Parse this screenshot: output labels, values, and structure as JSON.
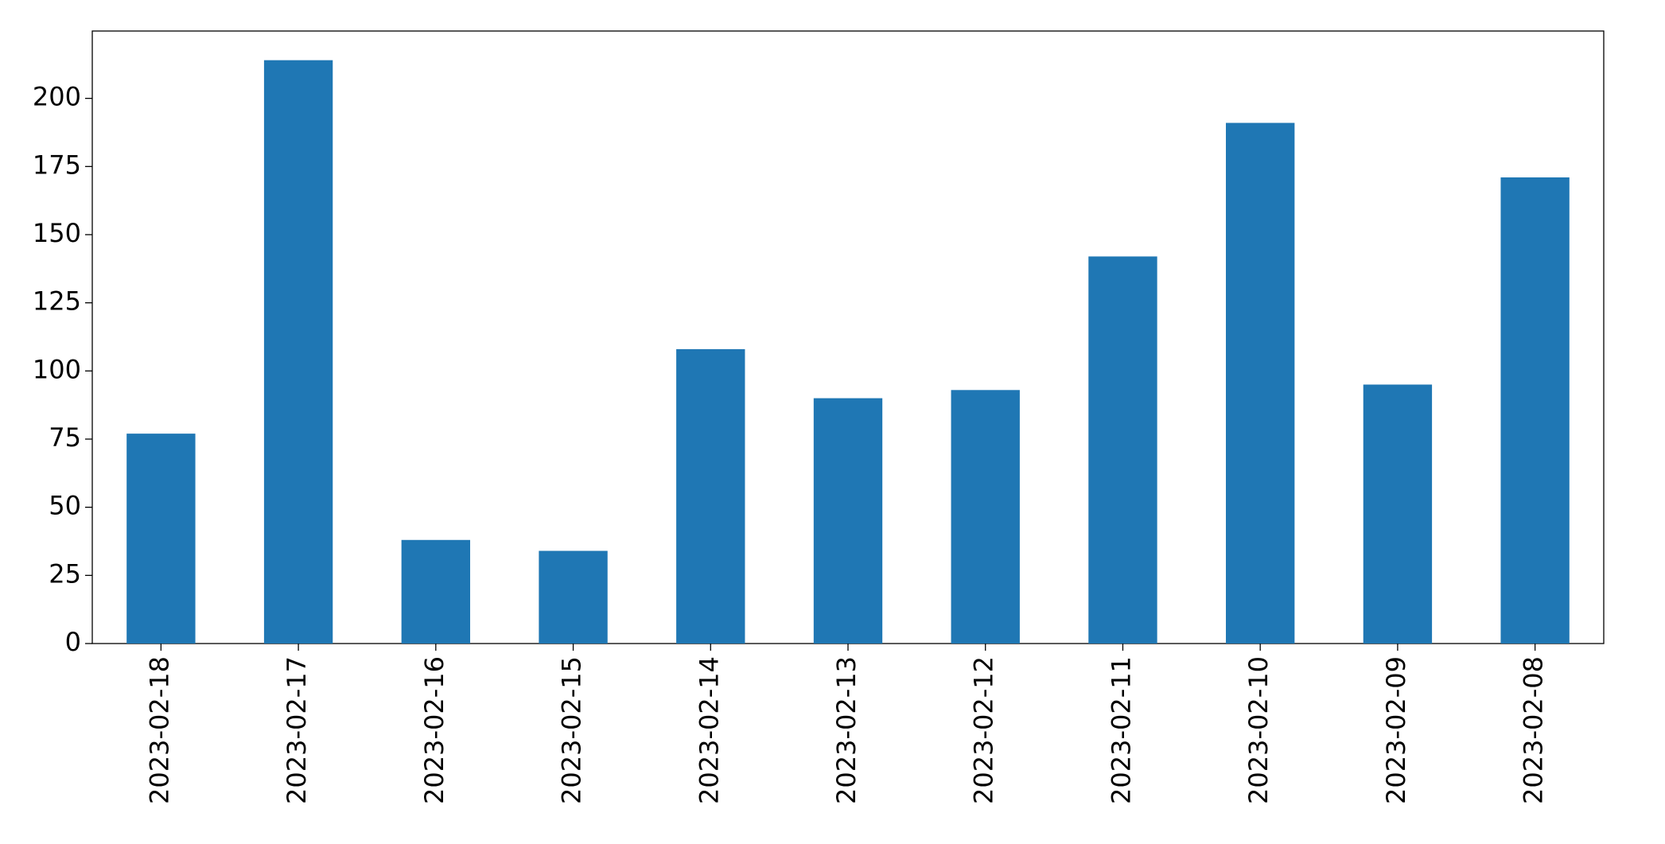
{
  "chart_data": {
    "type": "bar",
    "categories": [
      "2023-02-18",
      "2023-02-17",
      "2023-02-16",
      "2023-02-15",
      "2023-02-14",
      "2023-02-13",
      "2023-02-12",
      "2023-02-11",
      "2023-02-10",
      "2023-02-09",
      "2023-02-08"
    ],
    "values": [
      77,
      214,
      38,
      34,
      108,
      90,
      93,
      142,
      191,
      95,
      171
    ],
    "color": "#1f77b4",
    "ylim": [
      0,
      224.7
    ],
    "yticks": [
      0,
      25,
      50,
      75,
      100,
      125,
      150,
      175,
      200
    ],
    "grid": false
  }
}
